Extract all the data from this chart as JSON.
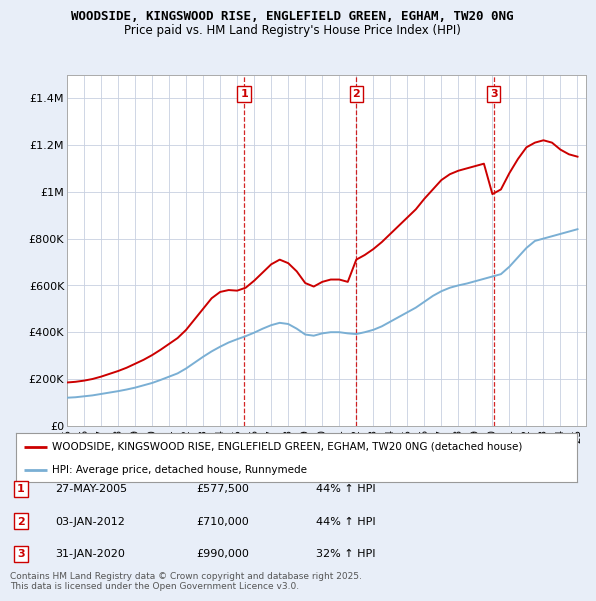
{
  "title1": "WOODSIDE, KINGSWOOD RISE, ENGLEFIELD GREEN, EGHAM, TW20 0NG",
  "title2": "Price paid vs. HM Land Registry's House Price Index (HPI)",
  "legend1": "WOODSIDE, KINGSWOOD RISE, ENGLEFIELD GREEN, EGHAM, TW20 0NG (detached house)",
  "legend2": "HPI: Average price, detached house, Runnymede",
  "footnote": "Contains HM Land Registry data © Crown copyright and database right 2025.\nThis data is licensed under the Open Government Licence v3.0.",
  "sale_color": "#cc0000",
  "hpi_color": "#7aafd4",
  "vline_color": "#cc0000",
  "ylim": [
    0,
    1500000
  ],
  "yticks": [
    0,
    200000,
    400000,
    600000,
    800000,
    1000000,
    1200000,
    1400000
  ],
  "ytick_labels": [
    "£0",
    "£200K",
    "£400K",
    "£600K",
    "£800K",
    "£1M",
    "£1.2M",
    "£1.4M"
  ],
  "sales": [
    {
      "label": "1",
      "date": "27-MAY-2005",
      "price": 577500,
      "pct": "44%",
      "dir": "↑",
      "x": 2005.41
    },
    {
      "label": "2",
      "date": "03-JAN-2012",
      "price": 710000,
      "pct": "44%",
      "dir": "↑",
      "x": 2012.01
    },
    {
      "label": "3",
      "date": "31-JAN-2020",
      "price": 990000,
      "pct": "32%",
      "dir": "↑",
      "x": 2020.08
    }
  ],
  "hpi_x": [
    1995,
    1995.5,
    1996,
    1996.5,
    1997,
    1997.5,
    1998,
    1998.5,
    1999,
    1999.5,
    2000,
    2000.5,
    2001,
    2001.5,
    2002,
    2002.5,
    2003,
    2003.5,
    2004,
    2004.5,
    2005,
    2005.5,
    2006,
    2006.5,
    2007,
    2007.5,
    2008,
    2008.5,
    2009,
    2009.5,
    2010,
    2010.5,
    2011,
    2011.5,
    2012,
    2012.5,
    2013,
    2013.5,
    2014,
    2014.5,
    2015,
    2015.5,
    2016,
    2016.5,
    2017,
    2017.5,
    2018,
    2018.5,
    2019,
    2019.5,
    2020,
    2020.5,
    2021,
    2021.5,
    2022,
    2022.5,
    2023,
    2023.5,
    2024,
    2024.5,
    2025
  ],
  "hpi_y": [
    120000,
    122000,
    126000,
    130000,
    136000,
    142000,
    148000,
    155000,
    163000,
    173000,
    183000,
    196000,
    210000,
    224000,
    245000,
    270000,
    295000,
    318000,
    338000,
    356000,
    370000,
    383000,
    398000,
    415000,
    430000,
    440000,
    435000,
    415000,
    390000,
    385000,
    395000,
    400000,
    400000,
    395000,
    392000,
    400000,
    410000,
    425000,
    445000,
    465000,
    485000,
    505000,
    530000,
    555000,
    575000,
    590000,
    600000,
    608000,
    618000,
    628000,
    638000,
    648000,
    680000,
    720000,
    760000,
    790000,
    800000,
    810000,
    820000,
    830000,
    840000
  ],
  "sale_x": [
    1995,
    1995.5,
    1996,
    1996.5,
    1997,
    1997.5,
    1998,
    1998.5,
    1999,
    1999.5,
    2000,
    2000.5,
    2001,
    2001.5,
    2002,
    2002.5,
    2003,
    2003.5,
    2004,
    2004.5,
    2005,
    2005.5,
    2006,
    2006.5,
    2007,
    2007.5,
    2008,
    2008.5,
    2009,
    2009.5,
    2010,
    2010.5,
    2011,
    2011.5,
    2012,
    2012.5,
    2013,
    2013.5,
    2014,
    2014.5,
    2015,
    2015.5,
    2016,
    2016.5,
    2017,
    2017.5,
    2018,
    2018.5,
    2019,
    2019.5,
    2020,
    2020.5,
    2021,
    2021.5,
    2022,
    2022.5,
    2023,
    2023.5,
    2024,
    2024.5,
    2025
  ],
  "sale_y": [
    185000,
    188000,
    193000,
    200000,
    210000,
    222000,
    234000,
    248000,
    265000,
    282000,
    302000,
    325000,
    350000,
    375000,
    410000,
    455000,
    500000,
    545000,
    572000,
    580000,
    577500,
    590000,
    620000,
    655000,
    690000,
    710000,
    695000,
    660000,
    610000,
    595000,
    615000,
    625000,
    625000,
    615000,
    710000,
    730000,
    755000,
    785000,
    820000,
    855000,
    890000,
    925000,
    970000,
    1010000,
    1050000,
    1075000,
    1090000,
    1100000,
    1110000,
    1120000,
    990000,
    1010000,
    1080000,
    1140000,
    1190000,
    1210000,
    1220000,
    1210000,
    1180000,
    1160000,
    1150000
  ],
  "xlim": [
    1995,
    2025.5
  ],
  "xtick_years": [
    1995,
    1996,
    1997,
    1998,
    1999,
    2000,
    2001,
    2002,
    2003,
    2004,
    2005,
    2006,
    2007,
    2008,
    2009,
    2010,
    2011,
    2012,
    2013,
    2014,
    2015,
    2016,
    2017,
    2018,
    2019,
    2020,
    2021,
    2022,
    2023,
    2024,
    2025
  ],
  "bg_color": "#e8eef8",
  "plot_bg": "#ffffff",
  "grid_color": "#c8d0e0"
}
